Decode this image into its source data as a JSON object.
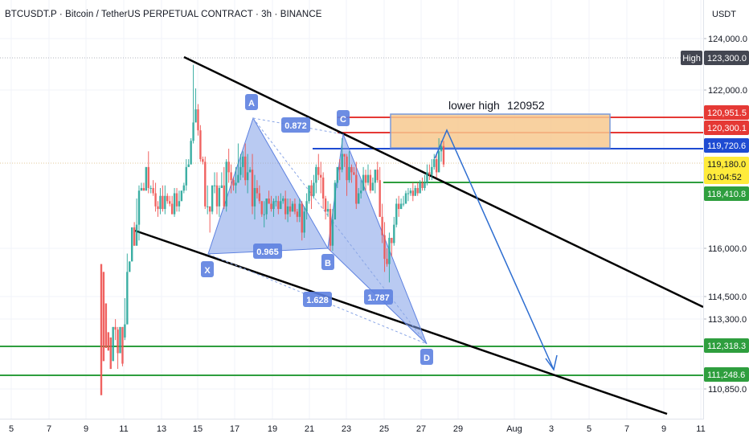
{
  "title": "BTCUSDT.P · Bitcoin / TetherUS PERPETUAL CONTRACT · 3h · BINANCE",
  "currency": "USDT",
  "chart_data": {
    "type": "candlestick",
    "price_ticks": [
      "124,000.0",
      "122,000.0",
      "116,000.0",
      "114,500.0",
      "113,300.0",
      "110,850.0"
    ],
    "x_ticks": [
      "5",
      "7",
      "9",
      "11",
      "13",
      "15",
      "17",
      "19",
      "21",
      "23",
      "25",
      "27",
      "29",
      "Aug",
      "3",
      "5",
      "7",
      "9",
      "11"
    ],
    "price_tags": [
      {
        "label": "High",
        "value": "123,300.0",
        "color": "#434651"
      },
      {
        "value": "120,951.5",
        "color": "#e53935"
      },
      {
        "value": "120,300.1",
        "color": "#e53935"
      },
      {
        "value": "119,720.6",
        "color": "#1e4bd2"
      },
      {
        "value": "119,180.0",
        "sub": "01:04:52",
        "color": "#ffeb3b"
      },
      {
        "value": "118,410.8",
        "color": "#2e9e3e"
      },
      {
        "value": "112,318.3",
        "color": "#2e9e3e"
      },
      {
        "value": "111,248.6",
        "color": "#2e9e3e"
      }
    ],
    "pattern_points": [
      "X",
      "A",
      "B",
      "C",
      "D"
    ],
    "ratios": [
      "0.872",
      "0.965",
      "1.628",
      "1.787"
    ],
    "annotations": {
      "zone_text": "lower high",
      "zone_value": "120952"
    },
    "candles": [
      [
        115.4,
        110.4,
        111.2,
        115.1
      ],
      [
        115.1,
        111.7,
        111.8,
        113.9
      ],
      [
        113.9,
        112.2,
        112.1,
        112.8
      ],
      [
        112.8,
        112.1,
        112.2,
        112.6
      ],
      [
        112.6,
        111.4,
        111.6,
        111.7
      ],
      [
        111.7,
        113.0,
        111.0,
        112.3
      ],
      [
        113.0,
        112.9,
        113.3,
        112.5
      ],
      [
        112.9,
        112.0,
        113.0,
        111.4
      ],
      [
        112.0,
        113.0,
        112.1,
        113.0
      ],
      [
        113.0,
        111.6,
        112.4,
        111.5
      ],
      [
        112.6,
        113.1,
        114.1,
        112.5
      ],
      [
        113.1,
        115.1,
        115.8,
        113.1
      ],
      [
        115.1,
        115.5,
        115.4,
        115.1
      ],
      [
        115.5,
        116.8,
        116.5,
        115.7
      ],
      [
        116.8,
        116.1,
        117.0,
        116.8
      ],
      [
        116.1,
        116.9,
        117.9,
        116.3
      ],
      [
        116.9,
        118.2,
        118.4,
        116.3
      ],
      [
        118.2,
        118.3,
        118.5,
        118.2
      ],
      [
        118.3,
        118.2,
        118.5,
        118.2
      ],
      [
        118.2,
        119.1,
        119.1,
        118.4
      ],
      [
        119.1,
        118.3,
        119.7,
        118.1
      ],
      [
        118.3,
        118.3,
        118.4,
        118.1
      ],
      [
        118.3,
        118.1,
        118.6,
        118.0
      ],
      [
        118.1,
        117.6,
        118.5,
        117.4
      ],
      [
        117.6,
        117.5,
        117.8,
        117.2
      ],
      [
        117.5,
        118.0,
        118.3,
        117.3
      ],
      [
        118.0,
        117.5,
        118.4,
        117.4
      ],
      [
        117.5,
        118.0,
        118.4,
        117.3
      ],
      [
        118.0,
        117.8,
        118.1,
        117.7
      ],
      [
        117.8,
        117.7,
        118.0,
        117.6
      ],
      [
        117.7,
        117.3,
        118.0,
        117.3
      ],
      [
        117.3,
        118.1,
        118.3,
        117.2
      ],
      [
        118.1,
        117.6,
        118.3,
        117.4
      ],
      [
        117.6,
        117.8,
        118.2,
        117.4
      ],
      [
        117.8,
        118.2,
        118.2,
        117.8
      ],
      [
        118.2,
        118.4,
        118.5,
        118.1
      ],
      [
        118.4,
        119.1,
        119.4,
        118.2
      ],
      [
        119.1,
        119.2,
        119.4,
        119.1
      ],
      [
        119.2,
        120.1,
        120.2,
        119.2
      ],
      [
        120.1,
        120.8,
        123.0,
        120.0
      ],
      [
        120.8,
        121.3,
        122.1,
        120.8
      ],
      [
        121.3,
        120.5,
        121.5,
        120.3
      ],
      [
        120.5,
        119.4,
        120.7,
        119.3
      ],
      [
        119.4,
        119.3,
        119.5,
        119.2
      ],
      [
        119.3,
        117.6,
        119.5,
        117.5
      ],
      [
        117.6,
        117.6,
        118.4,
        117.3
      ],
      [
        117.6,
        117.4,
        117.6,
        116.6
      ],
      [
        117.4,
        118.4,
        118.4,
        117.3
      ],
      [
        118.4,
        118.4,
        118.9,
        118.1
      ],
      [
        118.4,
        117.6,
        118.9,
        117.3
      ],
      [
        117.6,
        118.3,
        118.4,
        117.2
      ],
      [
        118.3,
        118.4,
        118.9,
        118.3
      ],
      [
        118.4,
        117.6,
        119.1,
        117.5
      ],
      [
        117.6,
        119.3,
        119.4,
        117.4
      ],
      [
        119.3,
        118.9,
        119.8,
        118.5
      ],
      [
        118.9,
        118.6,
        119.2,
        118.1
      ],
      [
        118.6,
        118.4,
        118.7,
        118.2
      ],
      [
        118.4,
        118.5,
        119.1,
        118.1
      ],
      [
        118.5,
        118.8,
        120.0,
        118.5
      ],
      [
        118.8,
        119.1,
        119.6,
        118.6
      ],
      [
        119.1,
        119.5,
        119.7,
        118.7
      ],
      [
        119.5,
        118.6,
        120.0,
        118.4
      ],
      [
        118.6,
        118.9,
        119.6,
        118.1
      ],
      [
        118.9,
        119.0,
        119.1,
        118.9
      ],
      [
        119.0,
        117.6,
        119.6,
        117.3
      ],
      [
        117.6,
        118.3,
        118.8,
        117.1
      ],
      [
        118.3,
        118.1,
        118.6,
        117.9
      ],
      [
        118.1,
        117.8,
        118.4,
        117.7
      ],
      [
        117.8,
        117.3,
        117.8,
        117.2
      ],
      [
        117.3,
        117.3,
        117.8,
        116.8
      ],
      [
        117.3,
        117.9,
        117.9,
        117.1
      ],
      [
        117.9,
        117.7,
        118.2,
        117.7
      ],
      [
        117.7,
        117.5,
        118.0,
        117.4
      ],
      [
        117.5,
        117.8,
        117.9,
        117.2
      ],
      [
        117.8,
        117.8,
        118.0,
        117.6
      ],
      [
        117.8,
        117.5,
        118.0,
        117.3
      ],
      [
        117.5,
        117.8,
        118.1,
        117.5
      ],
      [
        117.8,
        117.9,
        118.0,
        117.7
      ],
      [
        117.9,
        117.3,
        118.2,
        117.1
      ],
      [
        117.3,
        117.6,
        117.9,
        117.0
      ],
      [
        117.6,
        117.4,
        117.9,
        117.2
      ],
      [
        117.4,
        117.7,
        117.8,
        117.4
      ],
      [
        117.7,
        117.4,
        117.9,
        117.3
      ],
      [
        117.4,
        117.2,
        117.5,
        117.0
      ],
      [
        117.2,
        117.7,
        117.9,
        117.0
      ],
      [
        117.7,
        116.6,
        117.8,
        116.3
      ],
      [
        116.6,
        117.4,
        117.6,
        116.4
      ],
      [
        117.4,
        117.8,
        118.1,
        117.1
      ],
      [
        117.8,
        118.4,
        118.4,
        117.7
      ],
      [
        118.4,
        118.0,
        118.6,
        117.5
      ],
      [
        118.0,
        118.5,
        118.8,
        117.9
      ],
      [
        118.5,
        119.1,
        119.2,
        118.1
      ],
      [
        119.1,
        118.8,
        119.6,
        118.6
      ],
      [
        118.8,
        118.7,
        119.3,
        118.1
      ],
      [
        118.7,
        117.9,
        118.9,
        117.5
      ],
      [
        117.9,
        117.4,
        118.0,
        117.1
      ],
      [
        117.4,
        117.5,
        117.8,
        117.2
      ],
      [
        117.5,
        116.1,
        117.7,
        115.9
      ],
      [
        116.1,
        117.1,
        117.5,
        115.9
      ],
      [
        117.1,
        118.5,
        118.6,
        117.1
      ],
      [
        118.5,
        119.1,
        119.1,
        118.3
      ],
      [
        119.1,
        119.0,
        119.4,
        118.6
      ],
      [
        119.0,
        119.6,
        120.2,
        118.9
      ],
      [
        119.6,
        119.5,
        119.6,
        119.1
      ],
      [
        119.5,
        118.6,
        119.6,
        118.0
      ],
      [
        118.6,
        119.1,
        119.7,
        118.5
      ],
      [
        119.1,
        118.9,
        119.2,
        118.5
      ],
      [
        118.9,
        118.8,
        119.1,
        118.8
      ],
      [
        118.8,
        117.7,
        119.3,
        117.5
      ],
      [
        117.7,
        118.1,
        118.3,
        117.8
      ],
      [
        118.1,
        118.2,
        118.6,
        117.9
      ],
      [
        118.2,
        118.8,
        119.1,
        118.2
      ],
      [
        118.8,
        118.5,
        119.0,
        118.2
      ],
      [
        118.5,
        118.8,
        119.2,
        118.4
      ],
      [
        118.8,
        118.2,
        119.0,
        118.1
      ],
      [
        118.2,
        118.5,
        118.7,
        118.2
      ],
      [
        118.5,
        119.0,
        119.0,
        118.1
      ],
      [
        119.0,
        118.6,
        119.3,
        118.5
      ],
      [
        118.6,
        117.2,
        119.1,
        117.2
      ],
      [
        117.2,
        116.5,
        117.7,
        116.2
      ],
      [
        116.5,
        115.6,
        117.0,
        115.1
      ],
      [
        115.6,
        115.4,
        116.0,
        115.3
      ],
      [
        115.4,
        116.4,
        116.6,
        114.7
      ],
      [
        116.4,
        116.2,
        116.4,
        115.7
      ],
      [
        116.2,
        116.9,
        117.2,
        116.1
      ],
      [
        116.9,
        117.7,
        117.9,
        116.8
      ],
      [
        117.7,
        117.5,
        118.0,
        117.2
      ],
      [
        117.5,
        117.7,
        117.9,
        117.5
      ],
      [
        117.7,
        117.7,
        118.0,
        117.6
      ],
      [
        117.7,
        118.1,
        118.2,
        117.8
      ],
      [
        118.1,
        118.1,
        118.3,
        117.8
      ],
      [
        118.1,
        118.2,
        118.3,
        118.0
      ],
      [
        118.2,
        118.0,
        118.5,
        117.8
      ],
      [
        118.0,
        118.3,
        118.4,
        118.0
      ],
      [
        118.3,
        118.1,
        118.5,
        118.0
      ],
      [
        118.1,
        118.5,
        118.6,
        118.1
      ],
      [
        118.5,
        118.3,
        118.7,
        118.2
      ],
      [
        118.3,
        118.5,
        118.8,
        118.2
      ],
      [
        118.5,
        118.9,
        119.2,
        118.4
      ],
      [
        118.9,
        118.8,
        119.2,
        118.6
      ],
      [
        118.8,
        119.1,
        119.4,
        118.6
      ],
      [
        119.1,
        119.4,
        119.6,
        119.0
      ],
      [
        119.4,
        118.9,
        119.6,
        118.7
      ],
      [
        118.9,
        119.7,
        120.2,
        118.9
      ],
      [
        119.7,
        119.9,
        120.1,
        119.3
      ],
      [
        119.9,
        119.2,
        120.1,
        119.1
      ]
    ]
  }
}
